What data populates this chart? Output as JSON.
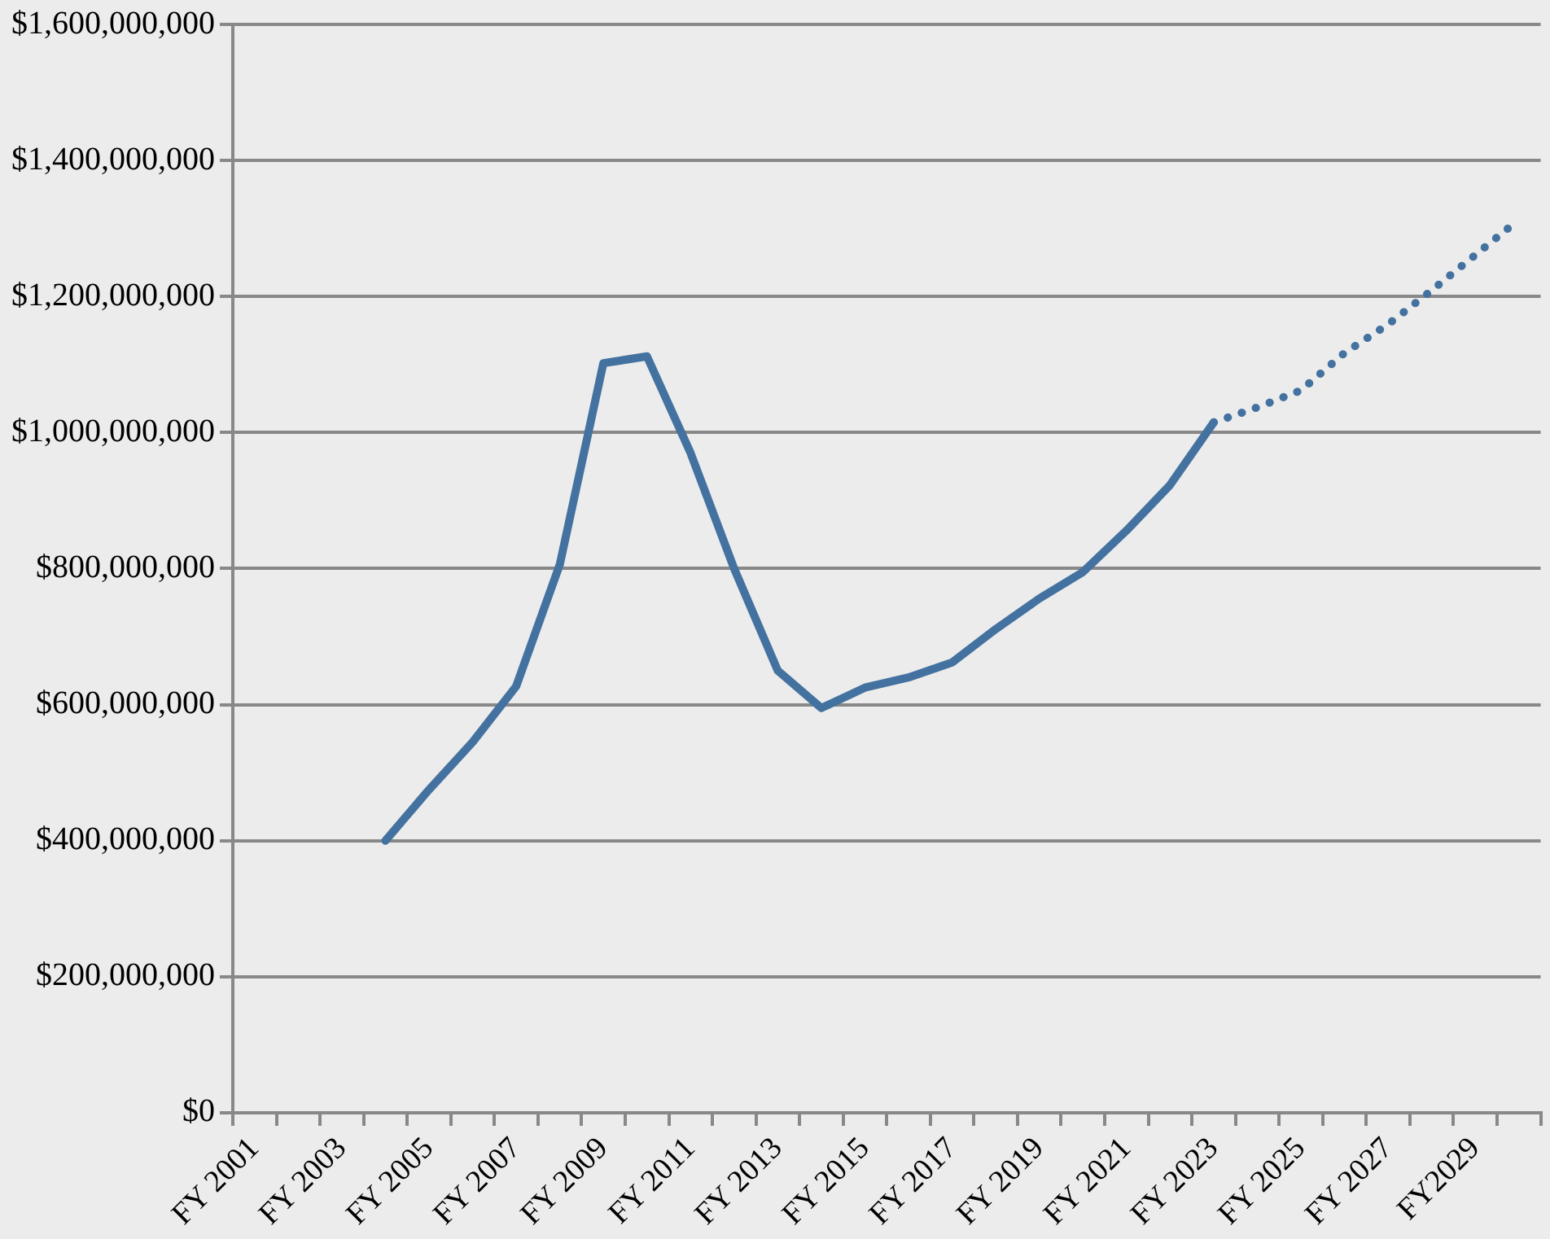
{
  "chart_data": {
    "type": "line",
    "categories": [
      "FY 2001",
      null,
      "FY 2003",
      null,
      "FY 2005",
      null,
      "FY 2007",
      null,
      "FY 2009",
      null,
      "FY 2011",
      null,
      "FY 2013",
      null,
      "FY 2015",
      null,
      "FY 2017",
      null,
      "FY 2019",
      null,
      "FY 2021",
      null,
      "FY 2023",
      null,
      "FY 2025",
      null,
      "FY 2027",
      null,
      "FY2029",
      null
    ],
    "series": [
      {
        "color": "#4472a0",
        "line_style": "solid",
        "values": [
          null,
          null,
          null,
          400000000,
          475000000,
          545000000,
          627000000,
          806000000,
          1102000000,
          1112000000,
          970000000,
          800000000,
          650000000,
          595000000,
          625000000,
          640000000,
          662000000,
          711000000,
          756000000,
          795000000,
          856000000,
          923000000,
          1015000000,
          null,
          null,
          null,
          null,
          null,
          null,
          null
        ]
      },
      {
        "color": "#4472a0",
        "line_style": "dotted",
        "values": [
          null,
          null,
          null,
          null,
          null,
          null,
          null,
          null,
          null,
          null,
          null,
          null,
          null,
          null,
          null,
          null,
          null,
          null,
          null,
          null,
          null,
          null,
          1015000000,
          1037000000,
          1062000000,
          1117000000,
          1159000000,
          1209000000,
          1261000000,
          1313000000
        ]
      }
    ],
    "ylim": [
      0,
      1600000000
    ],
    "yticks": [
      {
        "value": 0,
        "label": "$0"
      },
      {
        "value": 200000000,
        "label": "$200,000,000"
      },
      {
        "value": 400000000,
        "label": "$400,000,000"
      },
      {
        "value": 600000000,
        "label": "$600,000,000"
      },
      {
        "value": 800000000,
        "label": "$800,000,000"
      },
      {
        "value": 1000000000,
        "label": "$1,000,000,000"
      },
      {
        "value": 1200000000,
        "label": "$1,200,000,000"
      },
      {
        "value": 1400000000,
        "label": "$1,400,000,000"
      },
      {
        "value": 1600000000,
        "label": "$1,600,000,000"
      }
    ],
    "grid": "y",
    "legend": false,
    "marker": "none"
  }
}
